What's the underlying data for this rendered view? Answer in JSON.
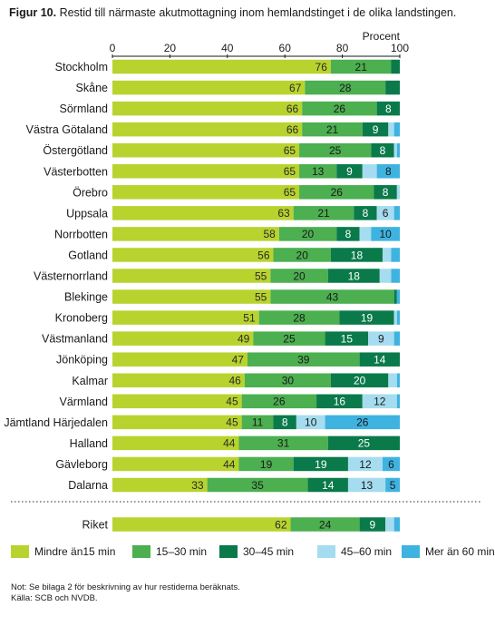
{
  "figure": {
    "label": "Figur 10.",
    "caption": "Restid till närmaste akutmottagning inom hemlandstinget i de olika landstingen."
  },
  "colors": [
    "#b8d32e",
    "#4caf50",
    "#0a7a4a",
    "#a6dcef",
    "#3fb3e0"
  ],
  "chart_data": {
    "type": "bar",
    "orientation": "horizontal",
    "stacked": true,
    "xlim": [
      0,
      100
    ],
    "x_ticks": [
      0,
      20,
      40,
      60,
      80,
      100
    ],
    "unit_label": "Procent",
    "grid": false,
    "legend_position": "bottom",
    "categories": [
      "Stockholm",
      "Skåne",
      "Sörmland",
      "Västra Götaland",
      "Östergötland",
      "Västerbotten",
      "Örebro",
      "Uppsala",
      "Norrbotten",
      "Gotland",
      "Västernorrland",
      "Blekinge",
      "Kronoberg",
      "Västmanland",
      "Jönköping",
      "Kalmar",
      "Värmland",
      "Jämtland Härjedalen",
      "Halland",
      "Gävleborg",
      "Dalarna",
      "Riket"
    ],
    "series": [
      {
        "name": "Mindre än15 min",
        "values": [
          76,
          67,
          66,
          66,
          65,
          65,
          65,
          63,
          58,
          56,
          55,
          55,
          51,
          49,
          47,
          46,
          45,
          45,
          44,
          44,
          33,
          62
        ]
      },
      {
        "name": "15–30 min",
        "values": [
          21,
          28,
          26,
          21,
          25,
          13,
          26,
          21,
          20,
          20,
          20,
          43,
          28,
          25,
          39,
          30,
          26,
          11,
          31,
          19,
          35,
          24
        ]
      },
      {
        "name": "30–45 min",
        "values": [
          3,
          5,
          8,
          9,
          8,
          9,
          8,
          8,
          8,
          18,
          18,
          1,
          19,
          15,
          14,
          20,
          16,
          8,
          25,
          19,
          14,
          9
        ]
      },
      {
        "name": "45–60 min",
        "values": [
          0,
          0,
          0,
          2,
          1,
          5,
          1,
          6,
          4,
          3,
          4,
          0,
          1,
          9,
          0,
          3,
          12,
          10,
          0,
          12,
          13,
          3
        ]
      },
      {
        "name": "Mer än 60 min",
        "values": [
          0,
          0,
          0,
          2,
          1,
          8,
          0,
          2,
          10,
          3,
          3,
          1,
          1,
          2,
          0,
          1,
          1,
          26,
          0,
          6,
          5,
          2
        ]
      }
    ],
    "data_labels": [
      [
        "76",
        "21",
        "",
        "",
        ""
      ],
      [
        "67",
        "28",
        "",
        "",
        ""
      ],
      [
        "66",
        "26",
        "8",
        "",
        ""
      ],
      [
        "66",
        "21",
        "9",
        "",
        ""
      ],
      [
        "65",
        "25",
        "8",
        "",
        ""
      ],
      [
        "65",
        "13",
        "9",
        "",
        "8"
      ],
      [
        "65",
        "26",
        "8",
        "",
        ""
      ],
      [
        "63",
        "21",
        "8",
        "6",
        ""
      ],
      [
        "58",
        "20",
        "8",
        "",
        "10"
      ],
      [
        "56",
        "20",
        "18",
        "",
        ""
      ],
      [
        "55",
        "20",
        "18",
        "",
        ""
      ],
      [
        "55",
        "43",
        "",
        "",
        ""
      ],
      [
        "51",
        "28",
        "19",
        "",
        ""
      ],
      [
        "49",
        "25",
        "15",
        "9",
        ""
      ],
      [
        "47",
        "39",
        "14",
        "",
        ""
      ],
      [
        "46",
        "30",
        "20",
        "",
        ""
      ],
      [
        "45",
        "26",
        "16",
        "12",
        ""
      ],
      [
        "45",
        "11",
        "8",
        "10",
        "26"
      ],
      [
        "44",
        "31",
        "25",
        "",
        ""
      ],
      [
        "44",
        "19",
        "19",
        "12",
        "6"
      ],
      [
        "33",
        "35",
        "14",
        "13",
        "5"
      ],
      [
        "62",
        "24",
        "9",
        "",
        ""
      ]
    ]
  },
  "notes": [
    "Not: Se bilaga 2 för beskrivning av hur restiderna beräknats.",
    "Källa: SCB och NVDB."
  ]
}
